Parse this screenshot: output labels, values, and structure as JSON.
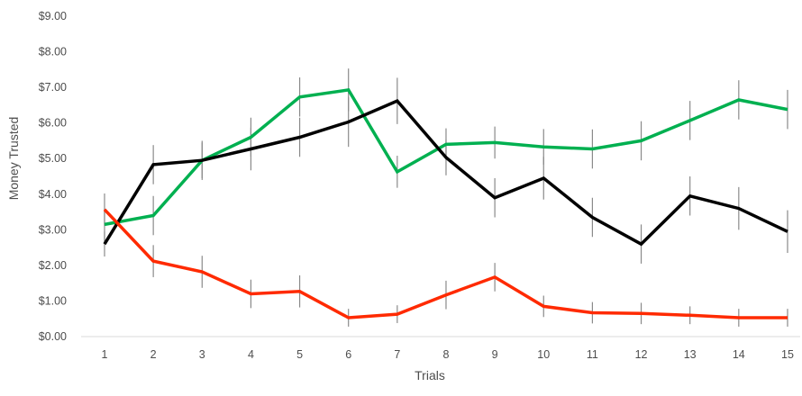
{
  "chart_data": {
    "type": "line",
    "title": "",
    "xlabel": "Trials",
    "ylabel": "Money Trusted",
    "x": [
      1,
      2,
      3,
      4,
      5,
      6,
      7,
      8,
      9,
      10,
      11,
      12,
      13,
      14,
      15
    ],
    "x_tick_labels": [
      "1",
      "2",
      "3",
      "4",
      "5",
      "6",
      "7",
      "8",
      "9",
      "10",
      "11",
      "12",
      "13",
      "14",
      "15"
    ],
    "ylim": [
      0,
      9
    ],
    "y_ticks": [
      0,
      1,
      2,
      3,
      4,
      5,
      6,
      7,
      8,
      9
    ],
    "y_tick_labels": [
      "$0.00",
      "$1.00",
      "$2.00",
      "$3.00",
      "$4.00",
      "$5.00",
      "$6.00",
      "$7.00",
      "$8.00",
      "$9.00"
    ],
    "grid": false,
    "legend": "none",
    "error_bars": true,
    "series": [
      {
        "color": "#00b050",
        "values": [
          3.15,
          3.4,
          4.95,
          5.6,
          6.73,
          6.93,
          4.63,
          5.4,
          5.45,
          5.33,
          5.27,
          5.5,
          6.07,
          6.65,
          6.38
        ],
        "errors": [
          0.45,
          0.55,
          0.5,
          0.55,
          0.55,
          0.6,
          0.45,
          0.45,
          0.45,
          0.5,
          0.55,
          0.55,
          0.55,
          0.55,
          0.55
        ]
      },
      {
        "color": "#000000",
        "values": [
          2.6,
          4.83,
          4.95,
          5.27,
          5.6,
          6.03,
          6.62,
          5.03,
          3.9,
          4.45,
          3.35,
          2.6,
          3.95,
          3.6,
          2.95
        ],
        "errors": [
          0.35,
          0.55,
          0.55,
          0.6,
          0.55,
          0.7,
          0.65,
          0.5,
          0.55,
          0.6,
          0.55,
          0.55,
          0.55,
          0.6,
          0.6
        ]
      },
      {
        "color": "#ff2a00",
        "values": [
          3.57,
          2.12,
          1.82,
          1.2,
          1.27,
          0.53,
          0.63,
          1.17,
          1.67,
          0.85,
          0.67,
          0.65,
          0.6,
          0.53,
          0.53
        ],
        "errors": [
          0.45,
          0.45,
          0.45,
          0.4,
          0.45,
          0.25,
          0.25,
          0.4,
          0.4,
          0.3,
          0.3,
          0.3,
          0.25,
          0.25,
          0.25
        ]
      }
    ]
  }
}
